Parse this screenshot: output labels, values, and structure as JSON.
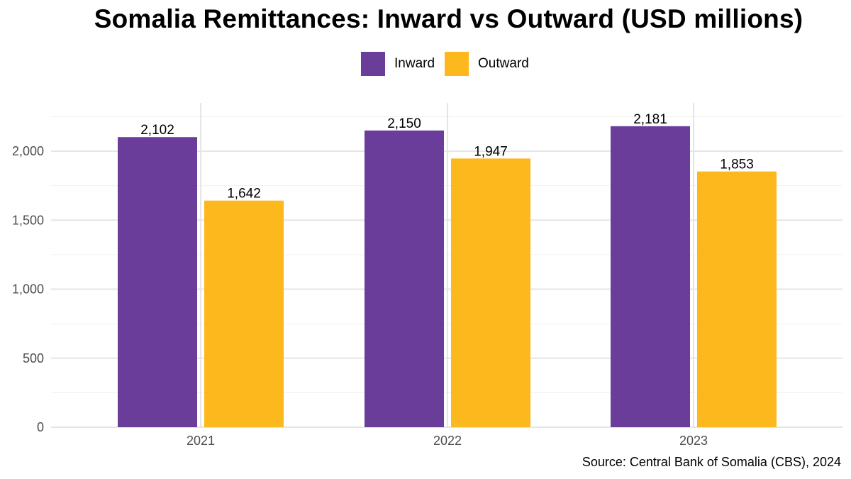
{
  "chart_data": {
    "type": "bar",
    "title": "Somalia Remittances: Inward vs Outward (USD millions)",
    "categories": [
      "2021",
      "2022",
      "2023"
    ],
    "series": [
      {
        "name": "Inward",
        "values": [
          2102,
          2150,
          2181
        ],
        "labels": [
          "2,102",
          "2,150",
          "2,181"
        ],
        "color": "#6a3d9a"
      },
      {
        "name": "Outward",
        "values": [
          1642,
          1947,
          1853
        ],
        "labels": [
          "1,642",
          "1,947",
          "1,853"
        ],
        "color": "#fdb81e"
      }
    ],
    "ylim": [
      0,
      2350
    ],
    "yticks": [
      0,
      500,
      1000,
      1500,
      2000
    ],
    "ytick_labels": [
      "0",
      "500",
      "1,000",
      "1,500",
      "2,000"
    ],
    "xlabel": "",
    "ylabel": "",
    "grid": true,
    "legend_position": "top",
    "caption": "Source: Central Bank of Somalia (CBS), 2024"
  }
}
